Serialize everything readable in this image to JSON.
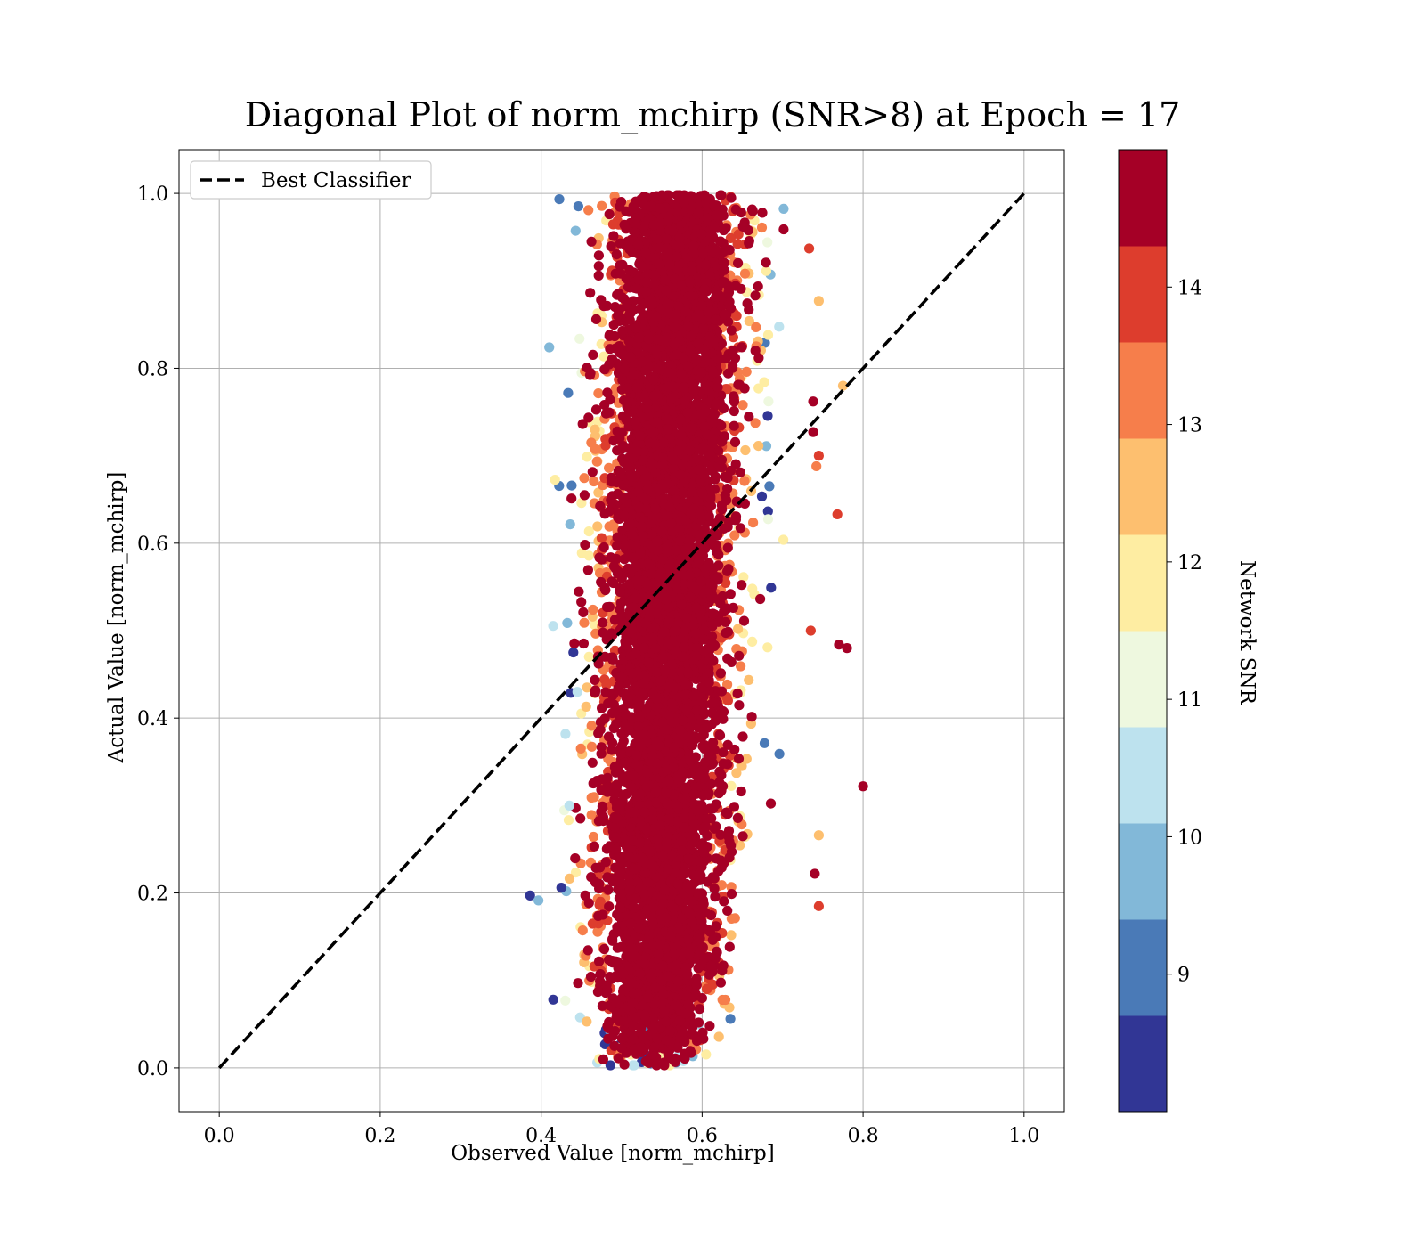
{
  "chart_data": {
    "type": "scatter",
    "title": "Diagonal Plot of norm_mchirp (SNR>8) at Epoch = 17",
    "xlabel": "Observed Value [norm_mchirp]",
    "ylabel": "Actual Value [norm_mchirp]",
    "xlim": [
      -0.05,
      1.05
    ],
    "ylim": [
      -0.05,
      1.05
    ],
    "xticks": [
      "0.0",
      "0.2",
      "0.4",
      "0.6",
      "0.8",
      "1.0"
    ],
    "yticks": [
      "0.0",
      "0.2",
      "0.4",
      "0.6",
      "0.8",
      "1.0"
    ],
    "grid": true,
    "legend": {
      "placement": "top-left",
      "entries": [
        "Best Classifier"
      ]
    },
    "reference_line": {
      "name": "Best Classifier",
      "x": [
        0.0,
        1.0
      ],
      "y": [
        0.0,
        1.0
      ],
      "style": "dashed",
      "color": "#000000"
    },
    "scatter_cloud": {
      "description_values": {
        "x_center": 0.56,
        "x_min": 0.42,
        "x_max": 0.8,
        "y_min": 0.0,
        "y_max": 1.0
      },
      "dominant_color": "#a50026"
    },
    "outliers": [
      {
        "x": 0.415,
        "y": 0.078,
        "c": 8.2
      },
      {
        "x": 0.425,
        "y": 0.206,
        "c": 8.2
      },
      {
        "x": 0.44,
        "y": 0.475,
        "c": 8.2
      },
      {
        "x": 0.435,
        "y": 0.3,
        "c": 10.4
      },
      {
        "x": 0.445,
        "y": 0.43,
        "c": 10.4
      },
      {
        "x": 0.43,
        "y": 0.077,
        "c": 11.0
      },
      {
        "x": 0.8,
        "y": 0.322,
        "c": 14.8
      },
      {
        "x": 0.78,
        "y": 0.48,
        "c": 14.8
      },
      {
        "x": 0.77,
        "y": 0.484,
        "c": 14.8
      },
      {
        "x": 0.768,
        "y": 0.633,
        "c": 14.2
      },
      {
        "x": 0.775,
        "y": 0.78,
        "c": 12.6
      },
      {
        "x": 0.733,
        "y": 0.937,
        "c": 14.2
      },
      {
        "x": 0.745,
        "y": 0.877,
        "c": 12.6
      },
      {
        "x": 0.745,
        "y": 0.185,
        "c": 14.2
      },
      {
        "x": 0.745,
        "y": 0.266,
        "c": 12.6
      },
      {
        "x": 0.74,
        "y": 0.222,
        "c": 14.8
      },
      {
        "x": 0.738,
        "y": 0.762,
        "c": 14.8
      },
      {
        "x": 0.738,
        "y": 0.727,
        "c": 14.8
      },
      {
        "x": 0.745,
        "y": 0.7,
        "c": 14.2
      },
      {
        "x": 0.742,
        "y": 0.688,
        "c": 13.4
      },
      {
        "x": 0.735,
        "y": 0.5,
        "c": 14.2
      }
    ],
    "colorbar": {
      "label": "Network SNR",
      "ticks": [
        "9",
        "10",
        "11",
        "12",
        "13",
        "14"
      ],
      "range": [
        8.0,
        15.0
      ],
      "bins": [
        {
          "from": 8.0,
          "to": 8.7,
          "color": "#313695"
        },
        {
          "from": 8.7,
          "to": 9.4,
          "color": "#4a7ab7"
        },
        {
          "from": 9.4,
          "to": 10.1,
          "color": "#82b8d8"
        },
        {
          "from": 10.1,
          "to": 10.8,
          "color": "#bde2ee"
        },
        {
          "from": 10.8,
          "to": 11.5,
          "color": "#eef8df"
        },
        {
          "from": 11.5,
          "to": 12.2,
          "color": "#feeda2"
        },
        {
          "from": 12.2,
          "to": 12.9,
          "color": "#fdbf6f"
        },
        {
          "from": 12.9,
          "to": 13.6,
          "color": "#f67e4b"
        },
        {
          "from": 13.6,
          "to": 14.3,
          "color": "#dd3d2d"
        },
        {
          "from": 14.3,
          "to": 15.0,
          "color": "#a50026"
        }
      ]
    }
  }
}
